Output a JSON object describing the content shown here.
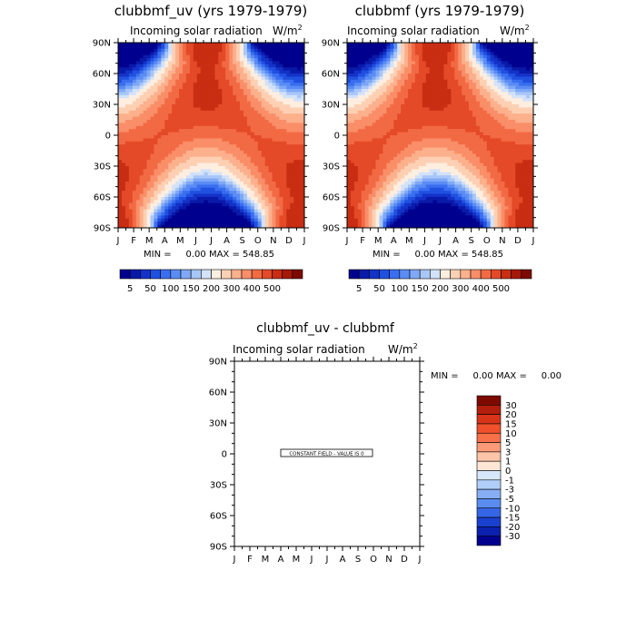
{
  "chart_data": [
    {
      "type": "heatmap",
      "title": "clubbmf_uv (yrs 1979-1979)",
      "subtitle": "Incoming solar radiation",
      "units_base": "W/m",
      "units_exp": "2",
      "x_ticks": [
        "J",
        "F",
        "M",
        "A",
        "M",
        "J",
        "J",
        "A",
        "S",
        "O",
        "N",
        "D",
        "J"
      ],
      "y_ticks": [
        "90N",
        "60N",
        "30N",
        "0",
        "30S",
        "60S",
        "90S"
      ],
      "ylim": [
        -90,
        90
      ],
      "min_max_text": "MIN =     0.00 MAX = 548.85",
      "min": 0.0,
      "max": 548.85,
      "colorbar_labels": [
        "5",
        "50",
        "100",
        "150",
        "200",
        "300",
        "400",
        "500"
      ],
      "contour_levels": [
        5,
        25,
        50,
        75,
        100,
        125,
        150,
        175,
        200,
        250,
        300,
        350,
        400,
        450,
        500
      ],
      "colors": [
        "#00008f",
        "#0a1aa8",
        "#1432c8",
        "#2050e0",
        "#3a6ef0",
        "#5a8cf4",
        "#7fa8f6",
        "#a8c6f8",
        "#d2e2fa",
        "#fdeee0",
        "#fdd0b4",
        "#fcb08c",
        "#f98e68",
        "#f26a44",
        "#e44a28",
        "#c92d12",
        "#a61808",
        "#7d0a00"
      ]
    },
    {
      "type": "heatmap",
      "title": "clubbmf (yrs 1979-1979)",
      "subtitle": "Incoming solar radiation",
      "units_base": "W/m",
      "units_exp": "2",
      "x_ticks": [
        "J",
        "F",
        "M",
        "A",
        "M",
        "J",
        "J",
        "A",
        "S",
        "O",
        "N",
        "D",
        "J"
      ],
      "y_ticks": [
        "90N",
        "60N",
        "30N",
        "0",
        "30S",
        "60S",
        "90S"
      ],
      "ylim": [
        -90,
        90
      ],
      "min_max_text": "MIN =     0.00 MAX = 548.85",
      "min": 0.0,
      "max": 548.85,
      "colorbar_labels": [
        "5",
        "50",
        "100",
        "150",
        "200",
        "300",
        "400",
        "500"
      ],
      "contour_levels": [
        5,
        25,
        50,
        75,
        100,
        125,
        150,
        175,
        200,
        250,
        300,
        350,
        400,
        450,
        500
      ],
      "colors": [
        "#00008f",
        "#0a1aa8",
        "#1432c8",
        "#2050e0",
        "#3a6ef0",
        "#5a8cf4",
        "#7fa8f6",
        "#a8c6f8",
        "#d2e2fa",
        "#fdeee0",
        "#fdd0b4",
        "#fcb08c",
        "#f98e68",
        "#f26a44",
        "#e44a28",
        "#c92d12",
        "#a61808",
        "#7d0a00"
      ]
    },
    {
      "type": "heatmap",
      "title": "clubbmf_uv - clubbmf",
      "subtitle": "Incoming solar radiation",
      "units_base": "W/m",
      "units_exp": "2",
      "x_ticks": [
        "J",
        "F",
        "M",
        "A",
        "M",
        "J",
        "J",
        "A",
        "S",
        "O",
        "N",
        "D",
        "J"
      ],
      "y_ticks": [
        "90N",
        "60N",
        "30N",
        "0",
        "30S",
        "60S",
        "90S"
      ],
      "ylim": [
        -90,
        90
      ],
      "min_max_text": "MIN =     0.00 MAX =     0.00",
      "min": 0.0,
      "max": 0.0,
      "annotation": "CONSTANT FIELD - VALUE IS 0",
      "colorbar_labels": [
        "30",
        "20",
        "15",
        "10",
        "5",
        "3",
        "1",
        "0",
        "-1",
        "-3",
        "-5",
        "-10",
        "-15",
        "-20",
        "-30"
      ],
      "colors": [
        "#7d0a00",
        "#b31e0c",
        "#d8341a",
        "#f0502c",
        "#f8704a",
        "#fb9a78",
        "#fcc4a8",
        "#fee6d6",
        "#d6e6fb",
        "#b0cef8",
        "#86aef4",
        "#5a8cf0",
        "#3466e6",
        "#1a40d0",
        "#0c20b0",
        "#000090"
      ]
    }
  ]
}
